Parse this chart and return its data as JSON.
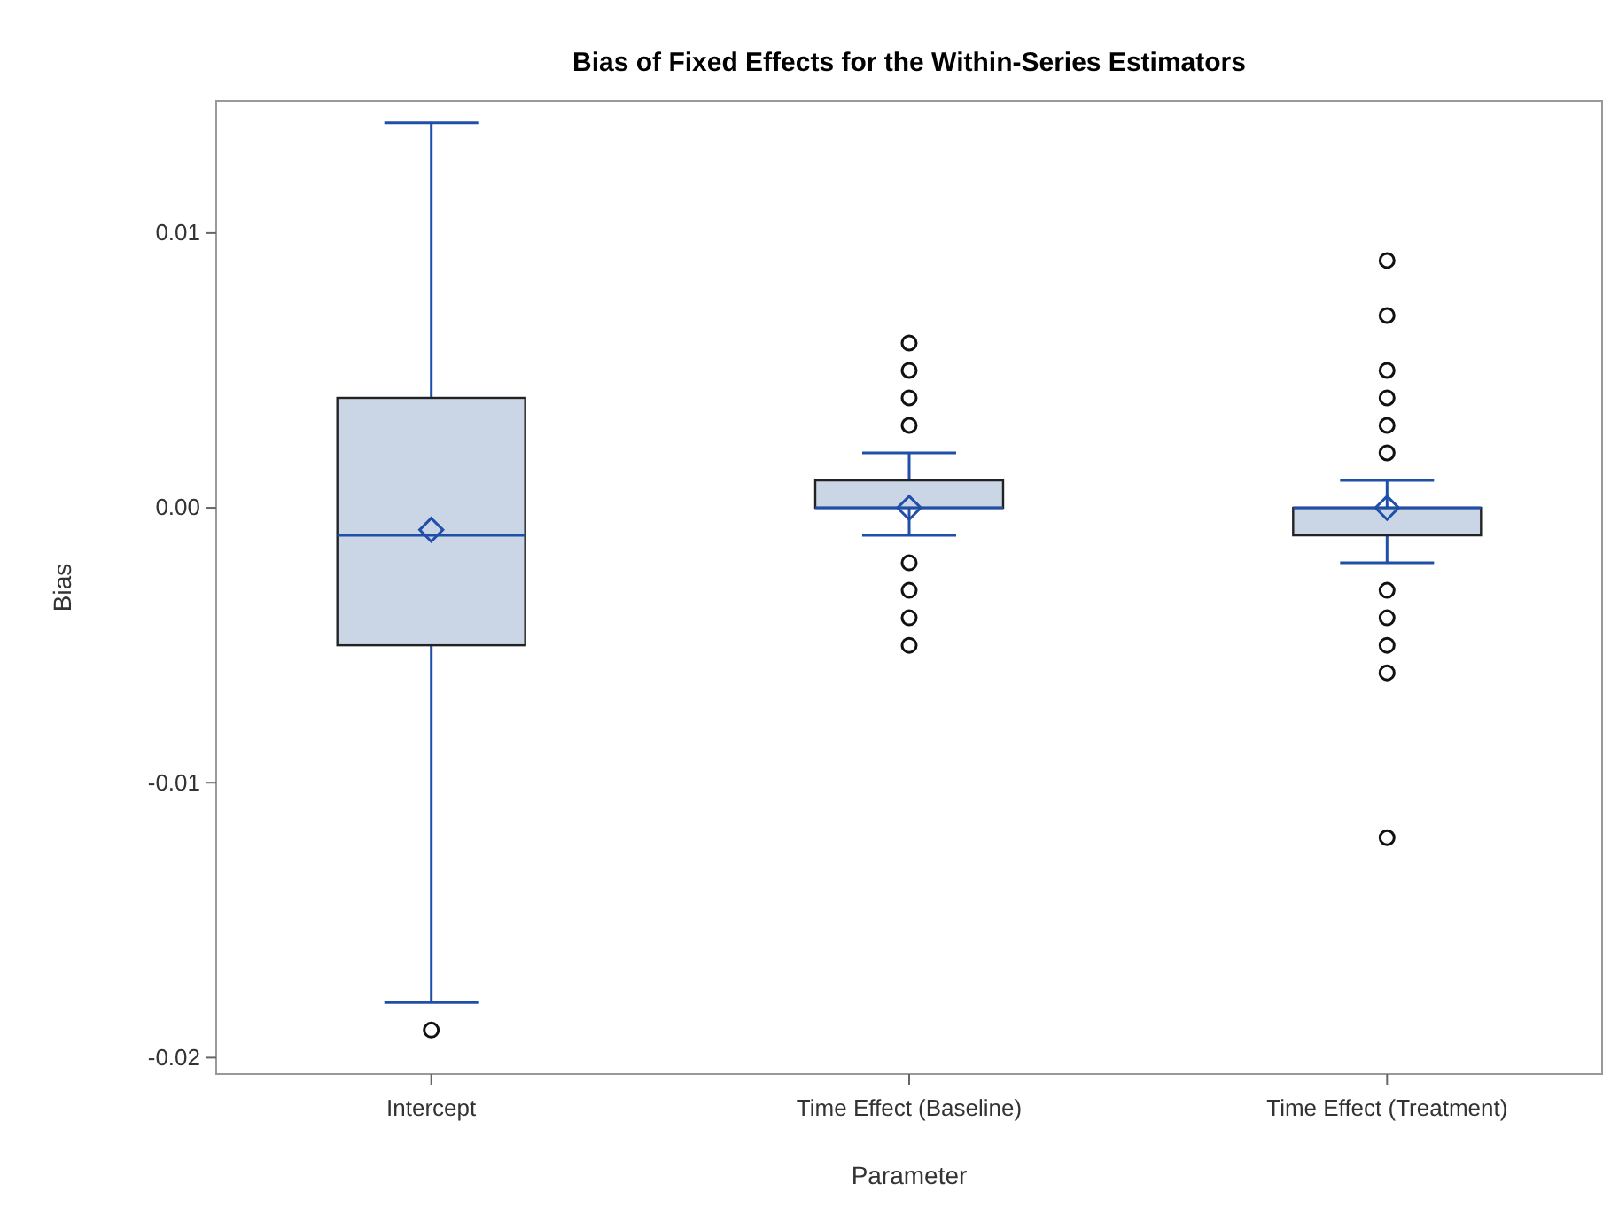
{
  "chart_data": {
    "type": "box",
    "title": "Bias of Fixed Effects for the Within-Series Estimators",
    "xlabel": "Parameter",
    "ylabel": "Bias",
    "categories": [
      "Intercept",
      "Time Effect (Baseline)",
      "Time Effect (Treatment)"
    ],
    "boxes": [
      {
        "low": -0.018,
        "q1": -0.005,
        "median": -0.001,
        "q3": 0.004,
        "high": 0.014,
        "mean": -0.0008,
        "outliers": [
          -0.019
        ]
      },
      {
        "low": -0.001,
        "q1": 0,
        "median": 0,
        "q3": 0.001,
        "high": 0.002,
        "mean": 0,
        "outliers": [
          0.006,
          0.005,
          0.004,
          0.003,
          -0.002,
          -0.003,
          -0.004,
          -0.005
        ]
      },
      {
        "low": -0.002,
        "q1": -0.001,
        "median": 0,
        "q3": 0,
        "high": 0.001,
        "mean": 0,
        "outliers": [
          0.009,
          0.007,
          0.005,
          0.004,
          0.003,
          0.002,
          -0.003,
          -0.004,
          -0.005,
          -0.006,
          -0.012
        ]
      }
    ],
    "color": "#cad5e5",
    "ylim": [
      -0.0206,
      0.0148
    ],
    "yticks": [
      {
        "value": -0.02,
        "label": "-0.02"
      },
      {
        "value": -0.01,
        "label": "-0.01"
      },
      {
        "value": 0,
        "label": "0.00"
      },
      {
        "value": 0.01,
        "label": "0.01"
      }
    ],
    "grid": false
  }
}
